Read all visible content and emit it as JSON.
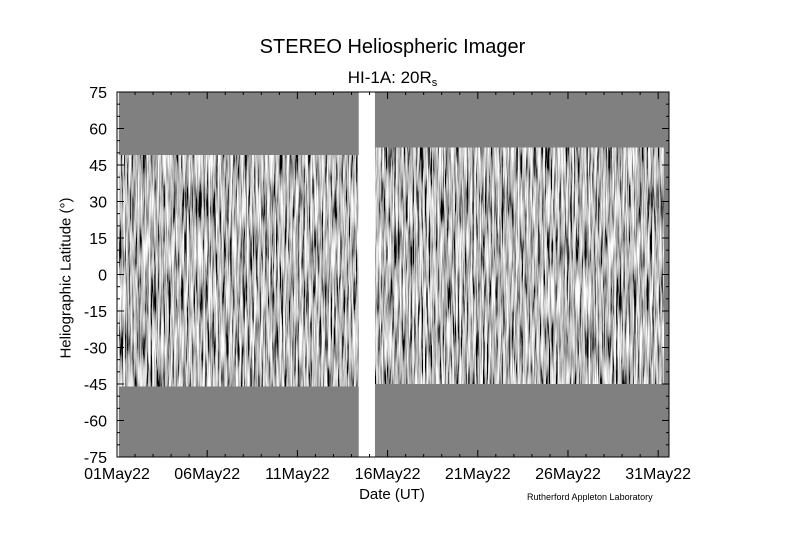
{
  "chart_data": {
    "type": "heatmap",
    "title": "STEREO Heliospheric Imager",
    "subtitle_main": "HI-1A: 20R",
    "subtitle_sub": "s",
    "xlabel": "Date (UT)",
    "ylabel": "Heliographic Latitude (°)",
    "credit": "Rutherford Appleton Laboratory",
    "x_ticks": [
      "01May22",
      "06May22",
      "11May22",
      "16May22",
      "21May22",
      "26May22",
      "31May22"
    ],
    "x_tick_days": [
      0,
      5,
      10,
      15,
      20,
      25,
      30
    ],
    "xlim_days": [
      0,
      30.6
    ],
    "y_ticks": [
      "75",
      "60",
      "45",
      "30",
      "15",
      "0",
      "-15",
      "-30",
      "-45",
      "-60",
      "-75"
    ],
    "ylim": [
      -75,
      75
    ],
    "background_color": "#808080",
    "data_gaps": [
      {
        "start_day": 0,
        "end_day": 0.1
      },
      {
        "start_day": 13.4,
        "end_day": 14.3
      }
    ],
    "data_coverage": [
      {
        "start_day": 0.1,
        "end_day": 13.4,
        "lat_min": -46,
        "lat_max": 49
      },
      {
        "start_day": 14.3,
        "end_day": 30.3,
        "lat_min": -45,
        "lat_max": 52
      }
    ]
  }
}
